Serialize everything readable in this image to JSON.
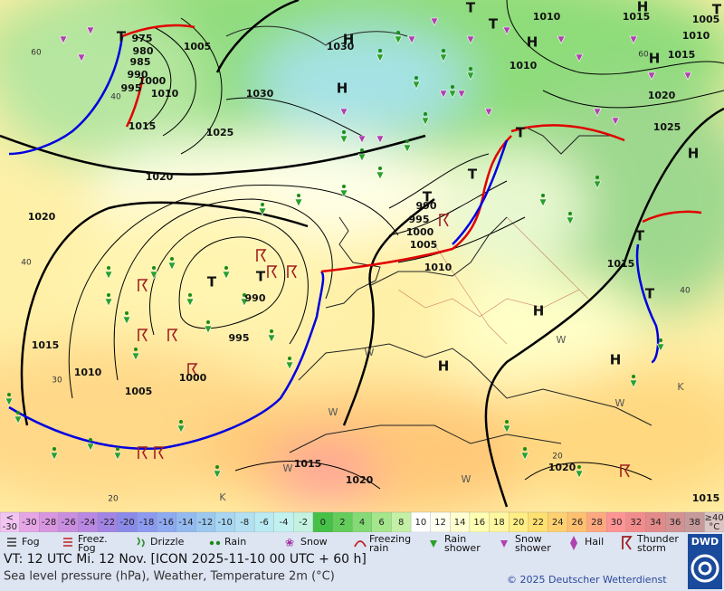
{
  "map": {
    "pressure_labels": [
      "975",
      "980",
      "985",
      "990",
      "995",
      "1000",
      "1010",
      "1005",
      "1015",
      "1020",
      "1025",
      "1030",
      "1030",
      "1020",
      "1015",
      "1010",
      "1005",
      "1000",
      "995",
      "990",
      "990",
      "995",
      "1000",
      "1005",
      "1010",
      "1010",
      "1015",
      "1010",
      "1015",
      "1010",
      "1020",
      "1025",
      "1015",
      "1015",
      "1020",
      "1020",
      "1015",
      "1005"
    ],
    "centers": [
      "H",
      "H",
      "H",
      "H",
      "H",
      "H",
      "H",
      "H",
      "H",
      "T",
      "T",
      "T",
      "T",
      "T",
      "T",
      "T",
      "T",
      "T",
      "T",
      "T"
    ],
    "isotherm_labels": [
      "60",
      "40",
      "40",
      "30",
      "20",
      "20",
      "40",
      "60"
    ],
    "weather_letters": [
      "W",
      "W",
      "W",
      "W",
      "K",
      "K",
      "W",
      "W"
    ]
  },
  "temperature_scale": {
    "labels": [
      "<\n-30",
      "-30",
      "-28",
      "-26",
      "-24",
      "-22",
      "-20",
      "-18",
      "-16",
      "-14",
      "-12",
      "-10",
      "-8",
      "-6",
      "-4",
      "-2",
      "0",
      "2",
      "4",
      "6",
      "8",
      "10",
      "12",
      "14",
      "16",
      "18",
      "20",
      "22",
      "24",
      "26",
      "28",
      "30",
      "32",
      "34",
      "36",
      "38",
      "≥40\n°C"
    ],
    "colors": [
      "#f2c4f2",
      "#e6a6e6",
      "#d996e0",
      "#c98ee0",
      "#b888e2",
      "#a284e4",
      "#8a8ae8",
      "#8c9af0",
      "#8eaaf0",
      "#94baf0",
      "#9cc8f0",
      "#a8d6f2",
      "#b2e0f2",
      "#baeaf2",
      "#c2f2f0",
      "#c4f2e0",
      "#46c046",
      "#64cc5a",
      "#84da74",
      "#a4e68c",
      "#c4f0a6",
      "#ffffff",
      "#fffff0",
      "#ffffd2",
      "#ffffb2",
      "#fff7a0",
      "#ffee84",
      "#ffe070",
      "#ffd070",
      "#ffc070",
      "#ffa880",
      "#ff9494",
      "#f28c8c",
      "#e28a8a",
      "#d29292",
      "#c69a9a",
      "#dcc4c4"
    ]
  },
  "legend": [
    "Fog",
    "Freez.\nFog",
    "Drizzle",
    "Rain",
    "Snow",
    "Freezing\nrain",
    "Rain\nshower",
    "Snow\nshower",
    "Hail",
    "Thunder\nstorm"
  ],
  "footer": {
    "valid_time": "VT: 12 UTC Mi.  12 Nov. [ICON 2025-11-10  00 UTC + 60 h]",
    "description": "Sea level pressure (hPa), Weather, Temperature 2m (°C)",
    "copyright": "© 2025 Deutscher Wetterdienst",
    "logo": "DWD"
  }
}
